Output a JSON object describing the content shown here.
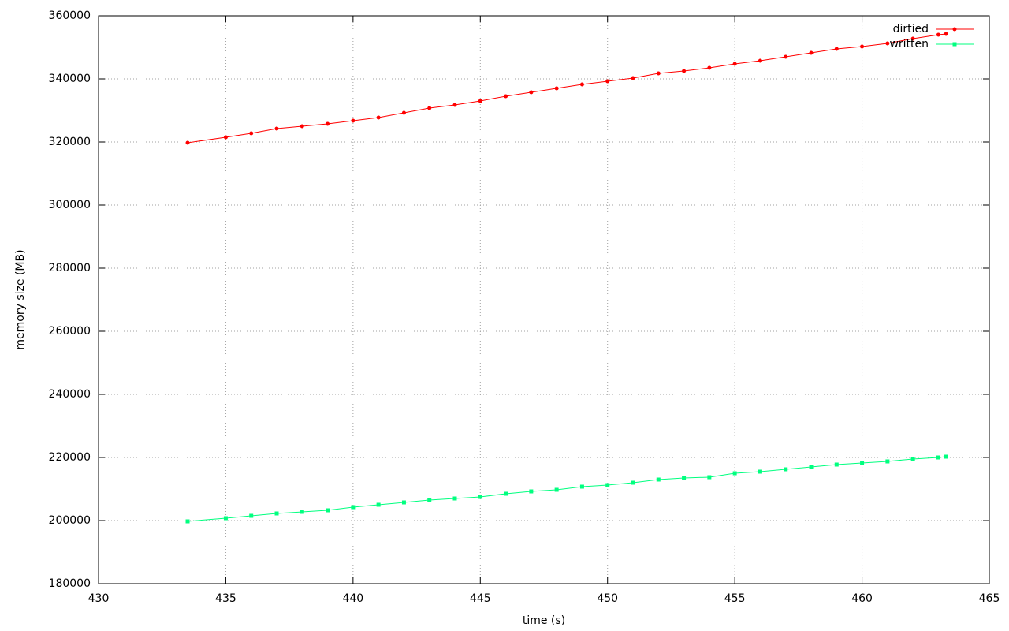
{
  "chart_data": {
    "type": "line",
    "x_label": "time (s)",
    "y_label": "memory size (MB)",
    "xlim": [
      430,
      465
    ],
    "xticks": [
      430,
      435,
      440,
      445,
      450,
      455,
      460,
      465
    ],
    "ylim": [
      180000,
      360000
    ],
    "yticks": [
      180000,
      200000,
      220000,
      240000,
      260000,
      280000,
      300000,
      320000,
      340000,
      360000
    ],
    "grid": true,
    "legend": "top-right",
    "series": [
      {
        "name": "dirtied",
        "color": "#ff0000",
        "marker": "circle",
        "x": [
          433.5,
          435,
          436,
          437,
          438,
          439,
          440,
          441,
          442,
          443,
          444,
          445,
          446,
          447,
          448,
          449,
          450,
          451,
          452,
          453,
          454,
          455,
          456,
          457,
          458,
          459,
          460,
          461,
          462,
          463,
          463.3
        ],
        "values": [
          319750,
          321500,
          322750,
          324250,
          325000,
          325750,
          326750,
          327750,
          329250,
          330750,
          331750,
          333000,
          334500,
          335750,
          337000,
          338250,
          339250,
          340250,
          341750,
          342500,
          343500,
          344750,
          345750,
          347000,
          348250,
          349500,
          350250,
          351250,
          352750,
          354000,
          354250
        ]
      },
      {
        "name": "written",
        "color": "#00ff7f",
        "marker": "square",
        "x": [
          433.5,
          435,
          436,
          437,
          438,
          439,
          440,
          441,
          442,
          443,
          444,
          445,
          446,
          447,
          448,
          449,
          450,
          451,
          452,
          453,
          454,
          455,
          456,
          457,
          458,
          459,
          460,
          461,
          462,
          463,
          463.3
        ],
        "values": [
          199750,
          200750,
          201500,
          202250,
          202750,
          203250,
          204250,
          205000,
          205750,
          206500,
          207000,
          207500,
          208500,
          209250,
          209750,
          210750,
          211250,
          212000,
          213000,
          213500,
          213750,
          215000,
          215500,
          216250,
          217000,
          217750,
          218250,
          218750,
          219500,
          220000,
          220250
        ]
      }
    ]
  }
}
